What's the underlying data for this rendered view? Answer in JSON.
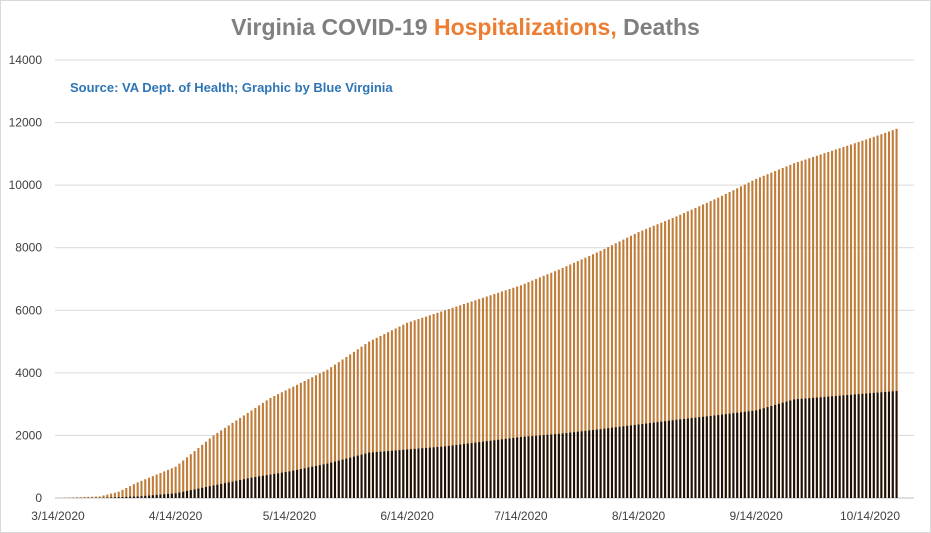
{
  "chart_data": {
    "type": "bar",
    "title": {
      "part1": "Virginia COVID-19 ",
      "part2": "Hospitalizations,",
      "part3": " Deaths"
    },
    "subtitle": "Source: VA Dept. of Health; Graphic by Blue Virginia",
    "xlabel": "",
    "ylabel": "",
    "x_start_date": "3/14/2020",
    "x_tick_labels": [
      "3/14/2020",
      "4/14/2020",
      "5/14/2020",
      "6/14/2020",
      "7/14/2020",
      "8/14/2020",
      "9/14/2020",
      "10/14/2020"
    ],
    "y_tick_labels": [
      "0",
      "2000",
      "4000",
      "6000",
      "8000",
      "10000",
      "12000",
      "14000"
    ],
    "ylim": [
      0,
      14000
    ],
    "grid": true,
    "legend": "none",
    "series": [
      {
        "color": "#c07d3a",
        "keypoints": [
          [
            "3/14/2020",
            0
          ],
          [
            "3/25/2020",
            50
          ],
          [
            "3/30/2020",
            200
          ],
          [
            "4/4/2020",
            500
          ],
          [
            "4/14/2020",
            1000
          ],
          [
            "4/24/2020",
            2000
          ],
          [
            "5/4/2020",
            2800
          ],
          [
            "5/9/2020",
            3200
          ],
          [
            "5/14/2020",
            3500
          ],
          [
            "5/24/2020",
            4100
          ],
          [
            "6/4/2020",
            5000
          ],
          [
            "6/14/2020",
            5600
          ],
          [
            "6/24/2020",
            6000
          ],
          [
            "7/4/2020",
            6400
          ],
          [
            "7/14/2020",
            6800
          ],
          [
            "7/24/2020",
            7300
          ],
          [
            "8/4/2020",
            7900
          ],
          [
            "8/14/2020",
            8500
          ],
          [
            "8/24/2020",
            9000
          ],
          [
            "9/4/2020",
            9600
          ],
          [
            "9/14/2020",
            10200
          ],
          [
            "9/24/2020",
            10700
          ],
          [
            "10/4/2020",
            11100
          ],
          [
            "10/14/2020",
            11500
          ],
          [
            "10/21/2020",
            11800
          ]
        ]
      },
      {
        "color": "#1e1208",
        "keypoints": [
          [
            "3/14/2020",
            0
          ],
          [
            "3/25/2020",
            5
          ],
          [
            "4/4/2020",
            50
          ],
          [
            "4/14/2020",
            150
          ],
          [
            "4/24/2020",
            400
          ],
          [
            "5/4/2020",
            650
          ],
          [
            "5/14/2020",
            850
          ],
          [
            "5/24/2020",
            1100
          ],
          [
            "6/4/2020",
            1450
          ],
          [
            "6/14/2020",
            1550
          ],
          [
            "6/24/2020",
            1650
          ],
          [
            "7/4/2020",
            1800
          ],
          [
            "7/14/2020",
            1950
          ],
          [
            "7/24/2020",
            2050
          ],
          [
            "8/4/2020",
            2200
          ],
          [
            "8/14/2020",
            2350
          ],
          [
            "8/24/2020",
            2500
          ],
          [
            "9/4/2020",
            2650
          ],
          [
            "9/14/2020",
            2800
          ],
          [
            "9/24/2020",
            3150
          ],
          [
            "10/4/2020",
            3250
          ],
          [
            "10/14/2020",
            3350
          ],
          [
            "10/21/2020",
            3420
          ]
        ]
      }
    ]
  }
}
